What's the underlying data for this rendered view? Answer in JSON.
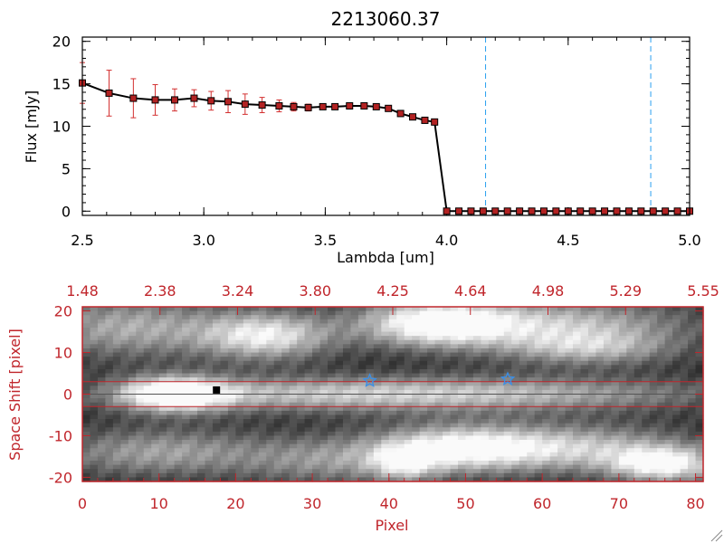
{
  "chart_data": [
    {
      "type": "line",
      "title": "2213060.37",
      "xlabel": "Lambda [um]",
      "ylabel": "Flux [mJy]",
      "xlim": [
        2.5,
        5.0
      ],
      "ylim": [
        -0.5,
        20.5
      ],
      "x_ticks": [
        "2.5",
        "3.0",
        "3.5",
        "4.0",
        "4.5",
        "5.0"
      ],
      "y_ticks": [
        "0",
        "5",
        "10",
        "15",
        "20"
      ],
      "series": [
        {
          "x": [
            2.5,
            2.61,
            2.71,
            2.8,
            2.88,
            2.96,
            3.03,
            3.1,
            3.17,
            3.24,
            3.31,
            3.37,
            3.43,
            3.49,
            3.54,
            3.6,
            3.66,
            3.71,
            3.76,
            3.81,
            3.86,
            3.91,
            3.95,
            4.0,
            4.05,
            4.1,
            4.15,
            4.2,
            4.25,
            4.3,
            4.35,
            4.4,
            4.45,
            4.5,
            4.55,
            4.6,
            4.65,
            4.7,
            4.75,
            4.8,
            4.85,
            4.9,
            4.95,
            5.0
          ],
          "y": [
            15.1,
            13.9,
            13.3,
            13.1,
            13.1,
            13.3,
            13.0,
            12.9,
            12.6,
            12.5,
            12.4,
            12.3,
            12.2,
            12.3,
            12.3,
            12.4,
            12.4,
            12.3,
            12.1,
            11.5,
            11.1,
            10.7,
            10.5,
            0,
            0,
            0,
            0,
            0,
            0,
            0,
            0,
            0,
            0,
            0,
            0,
            0,
            0,
            0,
            0,
            0,
            0,
            0,
            0,
            0
          ],
          "yerr": [
            2.4,
            2.7,
            2.3,
            1.8,
            1.3,
            1.0,
            1.1,
            1.3,
            1.2,
            0.9,
            0.7,
            0.5,
            0.4,
            0.3,
            0.3,
            0.3,
            0.3,
            0.3,
            0.3,
            0.3,
            0.3,
            0.3,
            0.3,
            0.2,
            0.2,
            0.2,
            0.2,
            0.2,
            0.2,
            0.2,
            0.2,
            0.2,
            0.2,
            0.2,
            0.2,
            0.2,
            0.2,
            0.2,
            0.2,
            0.2,
            0.2,
            0.2,
            0.2,
            0.2
          ]
        }
      ],
      "vlines_x": [
        4.16,
        4.84
      ],
      "colors": {
        "line": "#000000",
        "marker": "#b22222",
        "errorbar": "#d32f2f",
        "vline": "#2aa0f0"
      }
    },
    {
      "type": "heatmap",
      "xlabel": "Pixel",
      "ylabel": "Space Shift [pixel]",
      "xlim": [
        0,
        81
      ],
      "ylim": [
        -21,
        21
      ],
      "x_ticks": [
        "0",
        "10",
        "20",
        "30",
        "40",
        "50",
        "60",
        "70",
        "80"
      ],
      "y_ticks": [
        "-20",
        "-10",
        "0",
        "10",
        "20"
      ],
      "top_ticks": [
        "1.48",
        "2.38",
        "3.24",
        "3.80",
        "4.25",
        "4.64",
        "4.98",
        "5.29",
        "5.55"
      ],
      "trace_lines_y": [
        3,
        -3
      ],
      "stars": [
        {
          "x": 37.5,
          "y": 3.2
        },
        {
          "x": 55.5,
          "y": 3.6
        }
      ],
      "marker": {
        "x": 17.5,
        "y": 1.0
      },
      "colors": {
        "frame": "#c0262c",
        "star": "#3a8fe8",
        "marker": "#000000"
      }
    }
  ]
}
